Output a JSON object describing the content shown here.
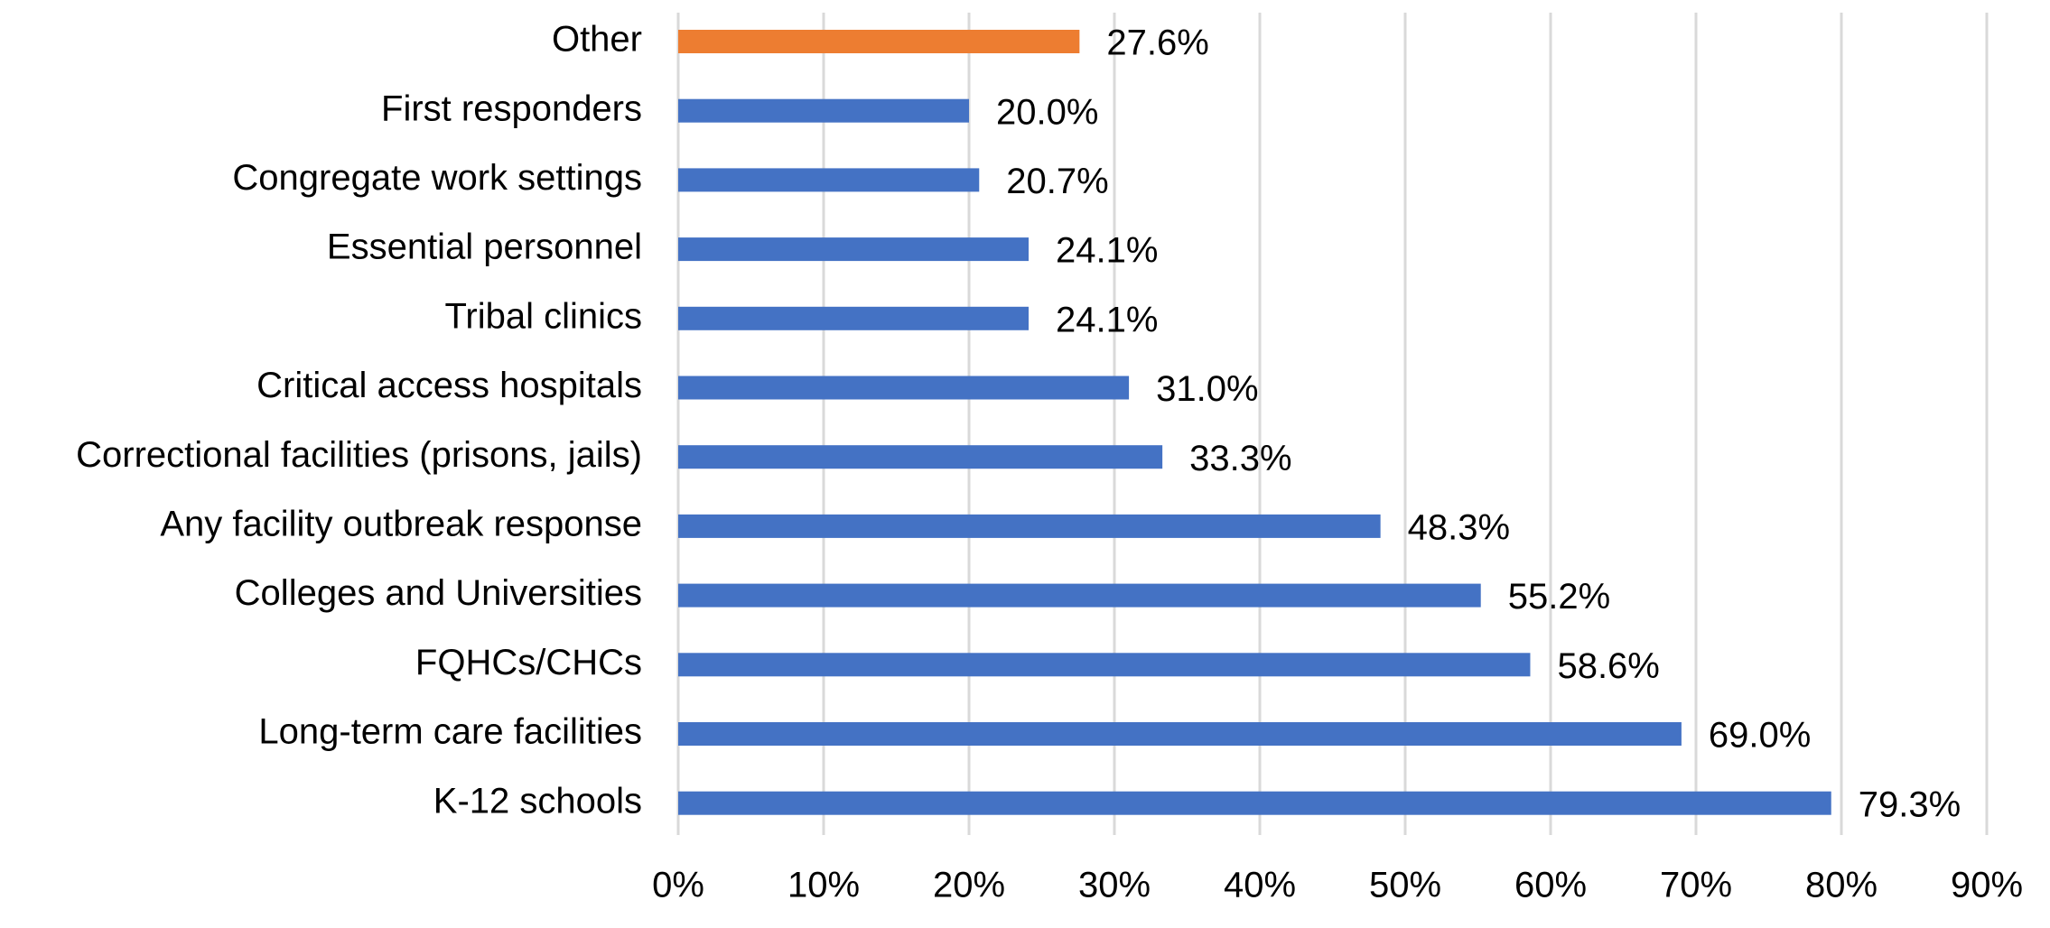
{
  "chart_data": {
    "type": "bar",
    "orientation": "horizontal",
    "categories": [
      "Other",
      "First responders",
      "Congregate work settings",
      "Essential personnel",
      "Tribal clinics",
      "Critical access hospitals",
      "Correctional facilities (prisons, jails)",
      "Any facility outbreak response",
      "Colleges and Universities",
      "FQHCs/CHCs",
      "Long-term care facilities",
      "K-12 schools"
    ],
    "values": [
      27.6,
      20.0,
      20.7,
      24.1,
      24.1,
      31.0,
      33.3,
      48.3,
      55.2,
      58.6,
      69.0,
      79.3
    ],
    "value_labels": [
      "27.6%",
      "20.0%",
      "20.7%",
      "24.1%",
      "24.1%",
      "31.0%",
      "33.3%",
      "48.3%",
      "55.2%",
      "58.6%",
      "69.0%",
      "79.3%"
    ],
    "colors": [
      "#ed7d31",
      "#4472c4",
      "#4472c4",
      "#4472c4",
      "#4472c4",
      "#4472c4",
      "#4472c4",
      "#4472c4",
      "#4472c4",
      "#4472c4",
      "#4472c4",
      "#4472c4"
    ],
    "xlim": [
      0,
      90
    ],
    "xticks": [
      {
        "value": 0,
        "label": "0%"
      },
      {
        "value": 10,
        "label": "10%"
      },
      {
        "value": 20,
        "label": "20%"
      },
      {
        "value": 30,
        "label": "30%"
      },
      {
        "value": 40,
        "label": "40%"
      },
      {
        "value": 50,
        "label": "50%"
      },
      {
        "value": 60,
        "label": "60%"
      },
      {
        "value": 70,
        "label": "70%"
      },
      {
        "value": 80,
        "label": "80%"
      },
      {
        "value": 90,
        "label": "90%"
      }
    ],
    "grid": true
  }
}
